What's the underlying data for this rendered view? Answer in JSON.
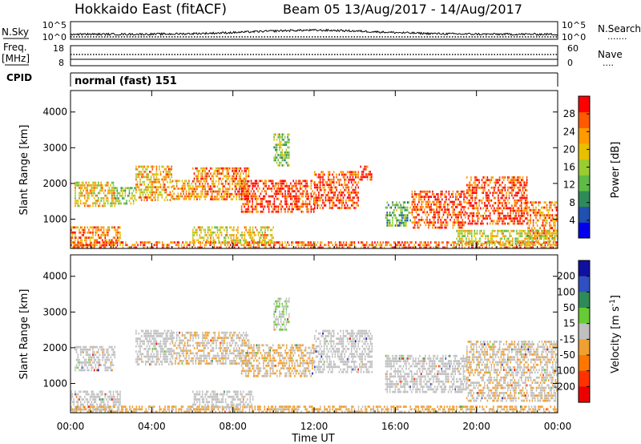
{
  "header": {
    "site": "Hokkaido East (fitACF)",
    "beam_date": "Beam 05  13/Aug/2017 - 14/Aug/2017"
  },
  "nsky": {
    "label": "N.Sky",
    "left_top": "10^5",
    "left_bottom": "10^0",
    "right_top": "10^5",
    "right_bottom": "10^0",
    "right_label": "N.Search",
    "right_marker": "......."
  },
  "freq": {
    "label_1": "Freq.",
    "label_2": "[MHz]",
    "left_top": "18",
    "left_bottom": "8",
    "right_top": "60",
    "right_bottom": "0",
    "right_label": "Nave",
    "right_marker": "....",
    "freq_line_mhz": 11,
    "nave_line": 25
  },
  "cpid": {
    "label": "CPID",
    "mode": "normal (fast) 151"
  },
  "chart_data": [
    {
      "type": "heatmap",
      "name": "power",
      "ylabel": "Slant Range [km]",
      "xlabel": "",
      "xlim": [
        0,
        24
      ],
      "ylim": [
        180,
        4600
      ],
      "x_ticks": [],
      "y_ticks": [
        "1000",
        "2000",
        "3000",
        "4000"
      ],
      "colorbar": {
        "label": "Power [dB]",
        "range": [
          0,
          32
        ],
        "ticks": [
          "28",
          "24",
          "20",
          "16",
          "12",
          "8",
          "4"
        ],
        "colors": [
          "#0000ee",
          "#2050b0",
          "#2e8b57",
          "#5dbb46",
          "#9acd32",
          "#e8c000",
          "#ff9a00",
          "#ff5a00",
          "#ff0000"
        ]
      },
      "regions": [
        {
          "x": [
            0.0,
            2.5
          ],
          "y": [
            250,
            800
          ],
          "v": 24
        },
        {
          "x": [
            0.2,
            2.2
          ],
          "y": [
            1350,
            2050
          ],
          "v": 20
        },
        {
          "x": [
            2.2,
            3.2
          ],
          "y": [
            1400,
            1900
          ],
          "v": 14
        },
        {
          "x": [
            3.2,
            5.0
          ],
          "y": [
            1500,
            2500
          ],
          "v": 22
        },
        {
          "x": [
            5.0,
            6.0
          ],
          "y": [
            1500,
            2100
          ],
          "v": 22
        },
        {
          "x": [
            6.0,
            8.8
          ],
          "y": [
            1500,
            2450
          ],
          "v": 24
        },
        {
          "x": [
            8.4,
            12.0
          ],
          "y": [
            1200,
            2100
          ],
          "v": 29
        },
        {
          "x": [
            12.0,
            14.2
          ],
          "y": [
            1300,
            2350
          ],
          "v": 28
        },
        {
          "x": [
            14.2,
            14.9
          ],
          "y": [
            2100,
            2500
          ],
          "v": 28
        },
        {
          "x": [
            10.0,
            10.8
          ],
          "y": [
            2500,
            3400
          ],
          "v": 14
        },
        {
          "x": [
            15.5,
            16.8
          ],
          "y": [
            750,
            1500
          ],
          "v": 12
        },
        {
          "x": [
            16.8,
            19.5
          ],
          "y": [
            750,
            1800
          ],
          "v": 28
        },
        {
          "x": [
            19.5,
            22.5
          ],
          "y": [
            800,
            2200
          ],
          "v": 28
        },
        {
          "x": [
            22.5,
            24.0
          ],
          "y": [
            400,
            1500
          ],
          "v": 24
        },
        {
          "x": [
            0.0,
            24.0
          ],
          "y": [
            190,
            380
          ],
          "v": 26
        },
        {
          "x": [
            6.0,
            10.0
          ],
          "y": [
            300,
            800
          ],
          "v": 20
        },
        {
          "x": [
            19.0,
            24.0
          ],
          "y": [
            250,
            700
          ],
          "v": 18
        }
      ]
    },
    {
      "type": "heatmap",
      "name": "velocity",
      "ylabel": "Slant Range [km]",
      "xlabel": "Time UT",
      "xlim": [
        0,
        24
      ],
      "ylim": [
        180,
        4600
      ],
      "x_ticks": [
        "00:00",
        "04:00",
        "08:00",
        "12:00",
        "16:00",
        "20:00",
        "00:00"
      ],
      "y_ticks": [
        "1000",
        "2000",
        "3000",
        "4000"
      ],
      "colorbar": {
        "label": "Velocity [m s-1]",
        "range": [
          -250,
          250
        ],
        "ticks": [
          "200",
          "100",
          "50",
          "15",
          "-15",
          "-50",
          "-100",
          "-200"
        ],
        "colors": [
          "#1010a0",
          "#3050c0",
          "#2e8b57",
          "#66cc33",
          "#c0c0c0",
          "#f0a030",
          "#ff7700",
          "#ff3300",
          "#ee0000"
        ]
      },
      "regions": [
        {
          "x": [
            0.0,
            2.5
          ],
          "y": [
            250,
            800
          ],
          "v": 0
        },
        {
          "x": [
            0.2,
            2.2
          ],
          "y": [
            1350,
            2050
          ],
          "v": -10
        },
        {
          "x": [
            3.2,
            5.0
          ],
          "y": [
            1500,
            2500
          ],
          "v": 0
        },
        {
          "x": [
            5.0,
            8.8
          ],
          "y": [
            1500,
            2450
          ],
          "v": -20
        },
        {
          "x": [
            8.4,
            12.0
          ],
          "y": [
            1200,
            2100
          ],
          "v": -30
        },
        {
          "x": [
            12.0,
            14.9
          ],
          "y": [
            1300,
            2500
          ],
          "v": 0
        },
        {
          "x": [
            10.0,
            10.8
          ],
          "y": [
            2500,
            3400
          ],
          "v": 20
        },
        {
          "x": [
            15.5,
            19.5
          ],
          "y": [
            750,
            1800
          ],
          "v": 0
        },
        {
          "x": [
            19.5,
            24.0
          ],
          "y": [
            500,
            2200
          ],
          "v": -20
        },
        {
          "x": [
            0.0,
            24.0
          ],
          "y": [
            190,
            380
          ],
          "v": -40
        },
        {
          "x": [
            6.0,
            9.0
          ],
          "y": [
            300,
            800
          ],
          "v": 5
        }
      ]
    }
  ]
}
